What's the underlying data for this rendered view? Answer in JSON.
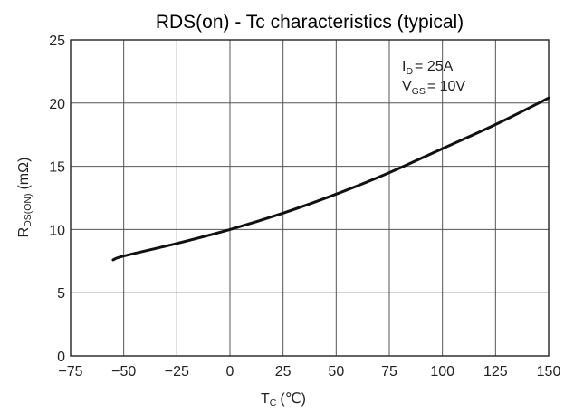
{
  "chart_data": {
    "type": "line",
    "title": "RDS(on) - Tc characteristics (typical)",
    "xlabel": {
      "main": "T",
      "sub": "C",
      "unit": "(℃)"
    },
    "ylabel": {
      "main": "R",
      "sub": "DS(ON)",
      "unit": "(mΩ)"
    },
    "xlim": [
      -75,
      150
    ],
    "ylim": [
      0,
      25
    ],
    "xticks": [
      -75,
      -50,
      -25,
      0,
      25,
      50,
      75,
      100,
      125,
      150
    ],
    "yticks": [
      0,
      5,
      10,
      15,
      20,
      25
    ],
    "xtick_labels": [
      "−75",
      "−50",
      "−25",
      "0",
      "25",
      "50",
      "75",
      "100",
      "125",
      "150"
    ],
    "ytick_labels": [
      "0",
      "5",
      "10",
      "15",
      "20",
      "25"
    ],
    "grid": true,
    "annotations": [
      {
        "main": "I",
        "sub": "D",
        "rest": "= 25A"
      },
      {
        "main": "V",
        "sub": "GS",
        "rest": "= 10V"
      }
    ],
    "series": [
      {
        "x": [
          -55,
          -50,
          -25,
          0,
          25,
          50,
          75,
          100,
          125,
          150
        ],
        "y": [
          7.6,
          7.9,
          8.9,
          10.0,
          11.3,
          12.8,
          14.5,
          16.4,
          18.3,
          20.4
        ]
      }
    ]
  }
}
